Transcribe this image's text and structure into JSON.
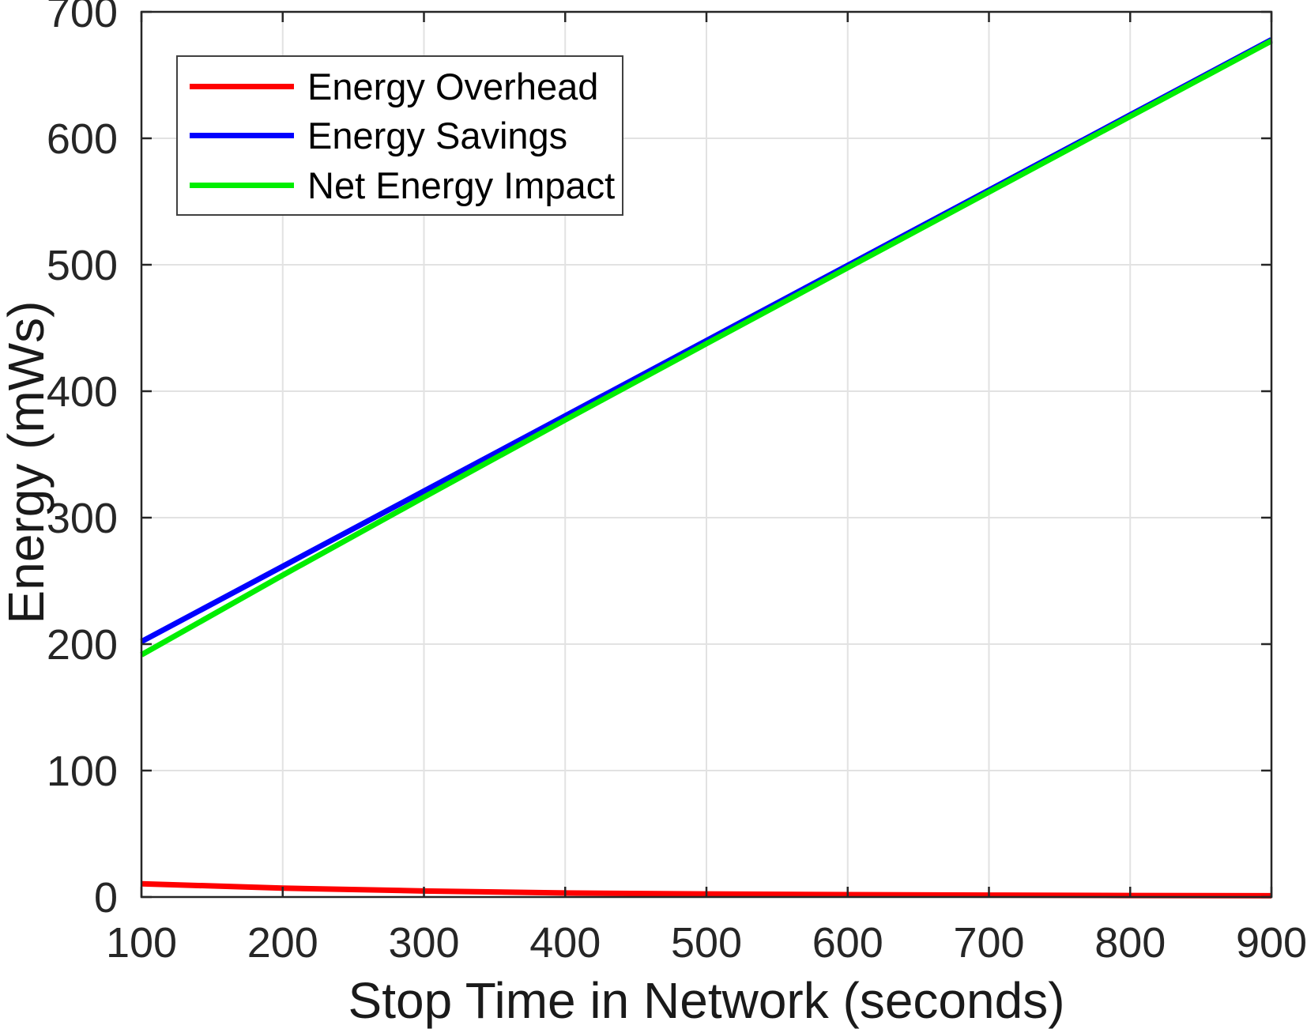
{
  "figure": {
    "background": "#ffffff",
    "axis_color": "#262626",
    "grid_color": "#e2e2e2",
    "tick_label_color": "#262626"
  },
  "chart_data": {
    "type": "line",
    "title": "",
    "xlabel": "Stop Time in Network (seconds)",
    "ylabel": "Energy (mWs)",
    "xlim": [
      100,
      900
    ],
    "ylim": [
      0,
      700
    ],
    "x_ticks": [
      100,
      200,
      300,
      400,
      500,
      600,
      700,
      800,
      900
    ],
    "y_ticks": [
      0,
      100,
      200,
      300,
      400,
      500,
      600,
      700
    ],
    "grid": true,
    "legend_position": "top-left",
    "line_width": 7,
    "x": [
      100,
      200,
      300,
      400,
      500,
      600,
      700,
      800,
      900
    ],
    "series": [
      {
        "name": "Energy Overhead",
        "color": "#ff0000",
        "values": [
          10.5,
          7.0,
          4.8,
          3.2,
          2.4,
          1.9,
          1.5,
          1.2,
          1.0
        ]
      },
      {
        "name": "Energy Savings",
        "color": "#0000ff",
        "values": [
          202,
          261.5,
          321,
          380.5,
          440,
          499.5,
          559,
          618.5,
          678
        ]
      },
      {
        "name": "Net Energy Impact",
        "color": "#00ee00",
        "values": [
          191.5,
          254.5,
          316.2,
          377.3,
          437.6,
          497.6,
          557.5,
          617.3,
          677
        ]
      }
    ]
  }
}
